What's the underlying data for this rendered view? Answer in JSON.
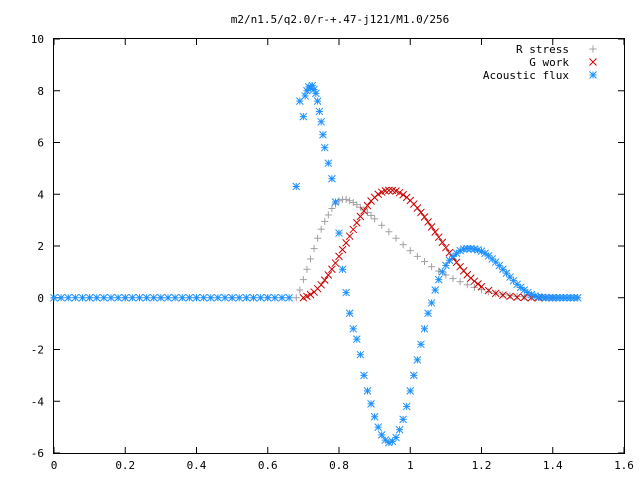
{
  "chart_data": {
    "type": "scatter",
    "title": "m2/n1.5/q2.0/r-+.47-j121/M1.0/256",
    "xlabel": "",
    "ylabel": "",
    "xlim": [
      0,
      1.6
    ],
    "ylim": [
      -6,
      10
    ],
    "xticks": [
      "0",
      "0.2",
      "0.4",
      "0.6",
      "0.8",
      "1",
      "1.2",
      "1.4",
      "1.6"
    ],
    "yticks": [
      "-6",
      "-4",
      "-2",
      "0",
      "2",
      "4",
      "6",
      "8",
      "10"
    ],
    "grid": false,
    "legend_position": "top-right",
    "series": [
      {
        "name": "R stress",
        "marker": "plus",
        "color": "#a0a0a0",
        "x": [
          0.0,
          0.1,
          0.2,
          0.3,
          0.4,
          0.5,
          0.6,
          0.68,
          0.69,
          0.7,
          0.71,
          0.72,
          0.73,
          0.74,
          0.75,
          0.76,
          0.77,
          0.78,
          0.79,
          0.8,
          0.81,
          0.82,
          0.83,
          0.84,
          0.85,
          0.86,
          0.87,
          0.88,
          0.89,
          0.9,
          0.92,
          0.94,
          0.96,
          0.98,
          1.0,
          1.02,
          1.04,
          1.06,
          1.08,
          1.1,
          1.12,
          1.14,
          1.16,
          1.18,
          1.2,
          1.22,
          1.24,
          1.26,
          1.28,
          1.3,
          1.32,
          1.34,
          1.36,
          1.38,
          1.4,
          1.42,
          1.44,
          1.46,
          1.47
        ],
        "y": [
          0,
          0,
          0,
          0,
          0,
          0,
          0,
          0,
          0.3,
          0.7,
          1.1,
          1.5,
          1.9,
          2.3,
          2.65,
          2.95,
          3.2,
          3.45,
          3.62,
          3.75,
          3.8,
          3.8,
          3.75,
          3.68,
          3.6,
          3.5,
          3.4,
          3.3,
          3.18,
          3.05,
          2.8,
          2.55,
          2.3,
          2.05,
          1.82,
          1.6,
          1.4,
          1.2,
          1.03,
          0.88,
          0.74,
          0.62,
          0.5,
          0.4,
          0.31,
          0.23,
          0.17,
          0.12,
          0.08,
          0.05,
          0.03,
          0.02,
          0.01,
          0.0,
          0.0,
          0.0,
          0.0,
          0.0,
          0.0
        ]
      },
      {
        "name": "G work",
        "marker": "cross",
        "color": "#cc0000",
        "x": [
          0.7,
          0.71,
          0.72,
          0.73,
          0.74,
          0.75,
          0.76,
          0.77,
          0.78,
          0.79,
          0.8,
          0.81,
          0.82,
          0.83,
          0.84,
          0.85,
          0.86,
          0.87,
          0.88,
          0.89,
          0.9,
          0.91,
          0.92,
          0.93,
          0.94,
          0.95,
          0.96,
          0.97,
          0.98,
          0.99,
          1.0,
          1.01,
          1.02,
          1.03,
          1.04,
          1.05,
          1.06,
          1.07,
          1.08,
          1.09,
          1.1,
          1.11,
          1.12,
          1.13,
          1.14,
          1.15,
          1.16,
          1.17,
          1.18,
          1.19,
          1.2,
          1.22,
          1.24,
          1.26,
          1.28,
          1.3,
          1.32,
          1.34,
          1.36,
          1.38,
          1.4
        ],
        "y": [
          0,
          0.05,
          0.12,
          0.22,
          0.35,
          0.5,
          0.68,
          0.88,
          1.1,
          1.34,
          1.6,
          1.86,
          2.12,
          2.38,
          2.64,
          2.9,
          3.14,
          3.36,
          3.56,
          3.74,
          3.88,
          4.0,
          4.08,
          4.13,
          4.15,
          4.15,
          4.12,
          4.06,
          3.98,
          3.88,
          3.76,
          3.62,
          3.47,
          3.3,
          3.12,
          2.93,
          2.74,
          2.54,
          2.34,
          2.14,
          1.94,
          1.74,
          1.55,
          1.37,
          1.2,
          1.04,
          0.89,
          0.76,
          0.64,
          0.53,
          0.43,
          0.28,
          0.17,
          0.1,
          0.05,
          0.02,
          0.01,
          0.0,
          0.0,
          0.0,
          0.0
        ]
      },
      {
        "name": "Acoustic flux",
        "marker": "star",
        "color": "#1e90ff",
        "x": [
          0.0,
          0.02,
          0.04,
          0.06,
          0.08,
          0.1,
          0.12,
          0.14,
          0.16,
          0.18,
          0.2,
          0.22,
          0.24,
          0.26,
          0.28,
          0.3,
          0.32,
          0.34,
          0.36,
          0.38,
          0.4,
          0.42,
          0.44,
          0.46,
          0.48,
          0.5,
          0.52,
          0.54,
          0.56,
          0.58,
          0.6,
          0.62,
          0.64,
          0.66,
          0.68,
          0.69,
          0.7,
          0.705,
          0.71,
          0.715,
          0.72,
          0.725,
          0.73,
          0.735,
          0.74,
          0.745,
          0.75,
          0.755,
          0.76,
          0.77,
          0.78,
          0.79,
          0.8,
          0.81,
          0.82,
          0.83,
          0.84,
          0.85,
          0.86,
          0.87,
          0.88,
          0.89,
          0.9,
          0.91,
          0.92,
          0.93,
          0.94,
          0.95,
          0.96,
          0.97,
          0.98,
          0.99,
          1.0,
          1.01,
          1.02,
          1.03,
          1.04,
          1.05,
          1.06,
          1.07,
          1.08,
          1.09,
          1.1,
          1.11,
          1.12,
          1.13,
          1.14,
          1.15,
          1.16,
          1.17,
          1.18,
          1.19,
          1.2,
          1.21,
          1.22,
          1.23,
          1.24,
          1.25,
          1.26,
          1.27,
          1.28,
          1.29,
          1.3,
          1.31,
          1.32,
          1.33,
          1.34,
          1.35,
          1.36,
          1.37,
          1.38,
          1.39,
          1.4,
          1.41,
          1.42,
          1.43,
          1.44,
          1.45,
          1.46,
          1.47
        ],
        "y": [
          0,
          0,
          0,
          0,
          0,
          0,
          0,
          0,
          0,
          0,
          0,
          0,
          0,
          0,
          0,
          0,
          0,
          0,
          0,
          0,
          0,
          0,
          0,
          0,
          0,
          0,
          0,
          0,
          0,
          0,
          0,
          0,
          0,
          0,
          4.3,
          7.6,
          7.0,
          7.8,
          8.0,
          8.15,
          8.1,
          8.2,
          8.05,
          7.9,
          7.6,
          7.2,
          6.8,
          6.3,
          5.8,
          5.2,
          4.6,
          3.7,
          2.5,
          1.1,
          0.2,
          -0.6,
          -1.2,
          -1.6,
          -2.2,
          -3.0,
          -3.6,
          -4.1,
          -4.6,
          -5.0,
          -5.3,
          -5.5,
          -5.6,
          -5.55,
          -5.4,
          -5.1,
          -4.7,
          -4.2,
          -3.6,
          -3.0,
          -2.4,
          -1.8,
          -1.2,
          -0.6,
          -0.2,
          0.3,
          0.7,
          1.0,
          1.25,
          1.45,
          1.6,
          1.72,
          1.82,
          1.88,
          1.9,
          1.9,
          1.88,
          1.85,
          1.8,
          1.72,
          1.62,
          1.5,
          1.38,
          1.24,
          1.1,
          0.95,
          0.8,
          0.66,
          0.52,
          0.4,
          0.3,
          0.2,
          0.12,
          0.07,
          0.03,
          0.02,
          0.01,
          0.0,
          0.0,
          0.0,
          0.0,
          0.0,
          0.0,
          0.0,
          0.0,
          0.0
        ]
      }
    ]
  }
}
